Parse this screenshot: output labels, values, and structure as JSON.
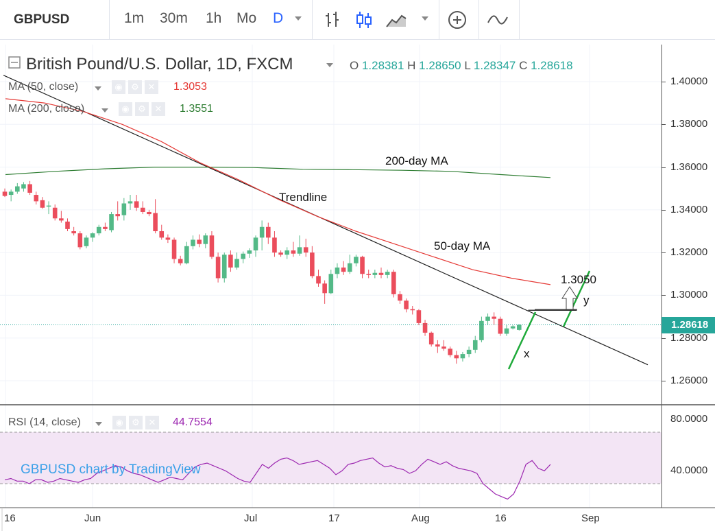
{
  "toolbar": {
    "symbol": "GBPUSD",
    "timeframes": [
      "1m",
      "30m",
      "1h",
      "Mo",
      "D"
    ],
    "active_timeframe": "D",
    "icons": [
      "bar-style-icon",
      "candle-style-icon",
      "area-style-icon",
      "add-compare-icon",
      "indicators-icon"
    ]
  },
  "legend": {
    "title": "British Pound/U.S. Dollar, 1D, FXCM",
    "ohlc": {
      "o_label": "O",
      "o": "1.28381",
      "h_label": "H",
      "h": "1.28650",
      "l_label": "L",
      "l": "1.28347",
      "c_label": "C",
      "c": "1.28618"
    }
  },
  "indicators": {
    "ma50": {
      "name": "MA (50, close)",
      "value": "1.3053",
      "color": "#e53935"
    },
    "ma200": {
      "name": "MA (200, close)",
      "value": "1.3551",
      "color": "#2e7d32"
    },
    "rsi": {
      "name": "RSI (14, close)",
      "value": "44.7554",
      "color": "#9c27b0"
    }
  },
  "annotations": {
    "ma200": "200-day MA",
    "trendline": "Trendline",
    "ma50": "50-day MA",
    "target": "1.3050",
    "x": "x",
    "y": "y"
  },
  "price_axis": {
    "ticks": [
      "1.40000",
      "1.38000",
      "1.36000",
      "1.34000",
      "1.32000",
      "1.30000",
      "1.28000",
      "1.26000"
    ],
    "last_price": "1.28618"
  },
  "rsi_axis": {
    "ticks": [
      "80.0000",
      "40.0000"
    ]
  },
  "time_axis": {
    "ticks": [
      "16",
      "Jun",
      "Jul",
      "17",
      "Aug",
      "16",
      "Sep"
    ]
  },
  "watermark": "GBPUSD chart by TradingView",
  "colors": {
    "up": "#26a69a",
    "down": "#ef5350",
    "up_candle": "#53b987",
    "down_candle": "#eb4d5c",
    "rsi_band": "#f3e5f5"
  },
  "chart_data": {
    "type": "candlestick",
    "title": "British Pound/U.S. Dollar, 1D, FXCM",
    "x_ticks": [
      "16",
      "Jun",
      "Jul",
      "17",
      "Aug",
      "16",
      "Sep"
    ],
    "ylim": [
      1.255,
      1.4065
    ],
    "ohlc": [
      [
        1.3485,
        1.35,
        1.346,
        1.3465
      ],
      [
        1.347,
        1.3495,
        1.344,
        1.3485
      ],
      [
        1.3485,
        1.3525,
        1.3475,
        1.351
      ],
      [
        1.35,
        1.353,
        1.3485,
        1.352
      ],
      [
        1.352,
        1.3535,
        1.347,
        1.348
      ],
      [
        1.347,
        1.3485,
        1.3425,
        1.344
      ],
      [
        1.3445,
        1.346,
        1.3405,
        1.341
      ],
      [
        1.3415,
        1.344,
        1.338,
        1.342
      ],
      [
        1.341,
        1.3425,
        1.335,
        1.336
      ],
      [
        1.336,
        1.3395,
        1.334,
        1.335
      ],
      [
        1.3345,
        1.336,
        1.33,
        1.331
      ],
      [
        1.33,
        1.332,
        1.328,
        1.329
      ],
      [
        1.329,
        1.33,
        1.3215,
        1.3225
      ],
      [
        1.323,
        1.328,
        1.322,
        1.327
      ],
      [
        1.327,
        1.3295,
        1.325,
        1.329
      ],
      [
        1.329,
        1.333,
        1.328,
        1.332
      ],
      [
        1.332,
        1.334,
        1.33,
        1.331
      ],
      [
        1.3305,
        1.339,
        1.3295,
        1.338
      ],
      [
        1.338,
        1.344,
        1.335,
        1.337
      ],
      [
        1.3375,
        1.3455,
        1.335,
        1.343
      ],
      [
        1.343,
        1.347,
        1.34,
        1.344
      ],
      [
        1.344,
        1.347,
        1.3395,
        1.341
      ],
      [
        1.341,
        1.344,
        1.338,
        1.339
      ],
      [
        1.339,
        1.34,
        1.337,
        1.338
      ],
      [
        1.3385,
        1.345,
        1.329,
        1.33
      ],
      [
        1.33,
        1.333,
        1.326,
        1.327
      ],
      [
        1.327,
        1.3285,
        1.3245,
        1.326
      ],
      [
        1.326,
        1.327,
        1.315,
        1.317
      ],
      [
        1.317,
        1.3185,
        1.314,
        1.315
      ],
      [
        1.315,
        1.325,
        1.3145,
        1.323
      ],
      [
        1.323,
        1.328,
        1.3215,
        1.326
      ],
      [
        1.326,
        1.3285,
        1.3225,
        1.324
      ],
      [
        1.324,
        1.329,
        1.322,
        1.328
      ],
      [
        1.328,
        1.33,
        1.317,
        1.318
      ],
      [
        1.318,
        1.32,
        1.306,
        1.308
      ],
      [
        1.308,
        1.32,
        1.306,
        1.319
      ],
      [
        1.319,
        1.321,
        1.311,
        1.313
      ],
      [
        1.313,
        1.32,
        1.312,
        1.317
      ],
      [
        1.317,
        1.3205,
        1.315,
        1.3195
      ],
      [
        1.3195,
        1.322,
        1.3175,
        1.321
      ],
      [
        1.321,
        1.328,
        1.318,
        1.327
      ],
      [
        1.327,
        1.335,
        1.321,
        1.332
      ],
      [
        1.332,
        1.334,
        1.324,
        1.327
      ],
      [
        1.327,
        1.33,
        1.318,
        1.32
      ],
      [
        1.32,
        1.321,
        1.318,
        1.319
      ],
      [
        1.319,
        1.3225,
        1.317,
        1.321
      ],
      [
        1.321,
        1.325,
        1.318,
        1.3195
      ],
      [
        1.3195,
        1.328,
        1.3185,
        1.3225
      ],
      [
        1.3225,
        1.3265,
        1.318,
        1.32
      ],
      [
        1.32,
        1.323,
        1.308,
        1.309
      ],
      [
        1.309,
        1.312,
        1.304,
        1.3055
      ],
      [
        1.3055,
        1.307,
        1.296,
        1.301
      ],
      [
        1.301,
        1.312,
        1.3005,
        1.31
      ],
      [
        1.31,
        1.315,
        1.308,
        1.313
      ],
      [
        1.313,
        1.316,
        1.3095,
        1.311
      ],
      [
        1.311,
        1.319,
        1.31,
        1.315
      ],
      [
        1.315,
        1.319,
        1.3135,
        1.318
      ],
      [
        1.318,
        1.3185,
        1.308,
        1.31
      ],
      [
        1.31,
        1.312,
        1.308,
        1.3095
      ],
      [
        1.3095,
        1.312,
        1.308,
        1.3105
      ],
      [
        1.3105,
        1.313,
        1.308,
        1.3095
      ],
      [
        1.3095,
        1.312,
        1.308,
        1.311
      ],
      [
        1.311,
        1.312,
        1.299,
        1.3005
      ],
      [
        1.3005,
        1.302,
        1.296,
        1.2975
      ],
      [
        1.2975,
        1.2985,
        1.292,
        1.2935
      ],
      [
        1.2935,
        1.295,
        1.291,
        1.293
      ],
      [
        1.293,
        1.2935,
        1.286,
        1.287
      ],
      [
        1.287,
        1.2885,
        1.281,
        1.2825
      ],
      [
        1.2825,
        1.283,
        1.276,
        1.277
      ],
      [
        1.277,
        1.279,
        1.273,
        1.276
      ],
      [
        1.276,
        1.279,
        1.274,
        1.275
      ],
      [
        1.275,
        1.276,
        1.271,
        1.272
      ],
      [
        1.272,
        1.274,
        1.268,
        1.2705
      ],
      [
        1.2705,
        1.2735,
        1.269,
        1.2725
      ],
      [
        1.2725,
        1.276,
        1.271,
        1.2745
      ],
      [
        1.2745,
        1.281,
        1.273,
        1.279
      ],
      [
        1.279,
        1.29,
        1.278,
        1.288
      ],
      [
        1.288,
        1.2915,
        1.286,
        1.29
      ],
      [
        1.29,
        1.292,
        1.286,
        1.289
      ],
      [
        1.289,
        1.29,
        1.281,
        1.282
      ],
      [
        1.282,
        1.286,
        1.281,
        1.2845
      ],
      [
        1.2845,
        1.286,
        1.284,
        1.2855
      ],
      [
        1.2838,
        1.2865,
        1.2835,
        1.2862
      ]
    ],
    "ma50": {
      "name": "MA (50, close)",
      "values": [
        1.392,
        1.39,
        1.386,
        1.38,
        1.372,
        1.362,
        1.354,
        1.345,
        1.337,
        1.33,
        1.324,
        1.318,
        1.312,
        1.308,
        1.305
      ]
    },
    "ma200": {
      "name": "MA (200, close)",
      "values": [
        1.3565,
        1.358,
        1.3592,
        1.36,
        1.36,
        1.3598,
        1.359,
        1.3588,
        1.3585,
        1.358,
        1.3565,
        1.3551
      ]
    },
    "rsi": {
      "name": "RSI (14, close)",
      "ylim": [
        0,
        100
      ],
      "band": [
        30,
        70
      ],
      "values": [
        33,
        34,
        32,
        32,
        30,
        33,
        33,
        31,
        32,
        34,
        33,
        32,
        31,
        33,
        34,
        38,
        40,
        42,
        44,
        43,
        40,
        38,
        37,
        35,
        33,
        31,
        33,
        35,
        34,
        33,
        38,
        43,
        45,
        46,
        44,
        42,
        40,
        37,
        34,
        32,
        31,
        38,
        45,
        42,
        46,
        49,
        50,
        48,
        45,
        46,
        47,
        48,
        45,
        42,
        37,
        40,
        45,
        46,
        48,
        49,
        50,
        46,
        43,
        44,
        42,
        41,
        38,
        40,
        45,
        49,
        47,
        45,
        47,
        44,
        42,
        41,
        40,
        38,
        30,
        26,
        22,
        20,
        18,
        22,
        32,
        45,
        48,
        42,
        40,
        45
      ]
    },
    "trendline": {
      "from": [
        0,
        1.403
      ],
      "to": [
        83,
        1.2675
      ]
    }
  }
}
